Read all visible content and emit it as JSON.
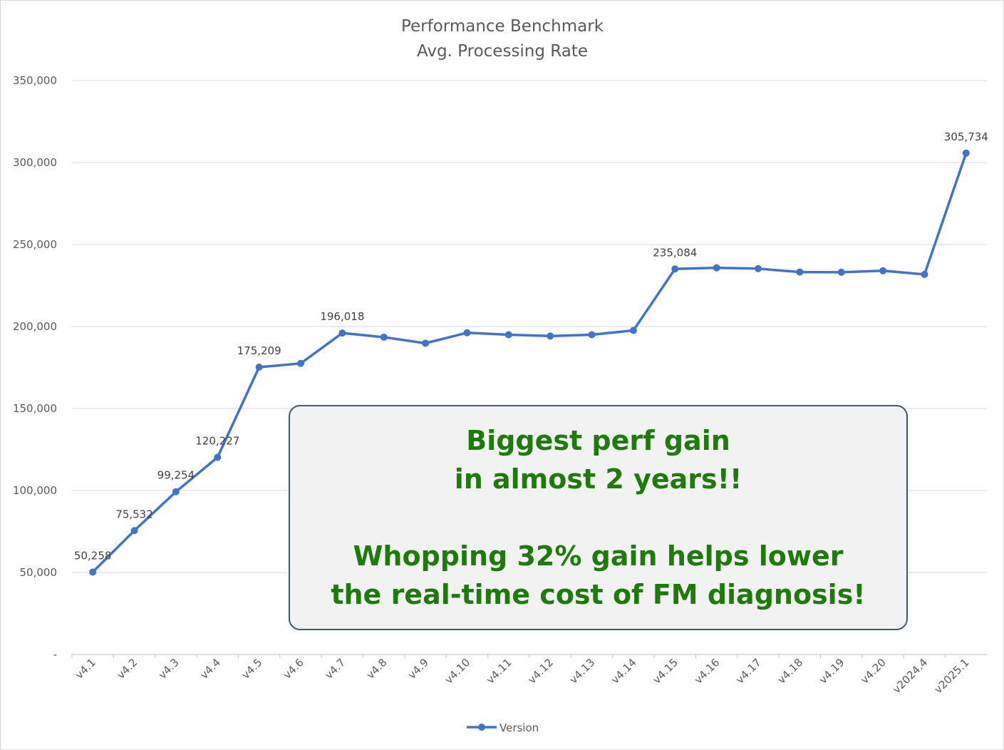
{
  "chart_data": {
    "type": "line",
    "title": "Performance Benchmark",
    "subtitle": "Avg. Processing Rate",
    "xlabel": "",
    "ylabel": "",
    "categories": [
      "v4.1",
      "v4.2",
      "v4.3",
      "v4.4",
      "v4.5",
      "v4.6",
      "v4.7",
      "v4.8",
      "v4.9",
      "v4.10",
      "v4.11",
      "v4.12",
      "v4.13",
      "v4.14",
      "v4.15",
      "v4.16",
      "v4.17",
      "v4.18",
      "v4.19",
      "v4.20",
      "v2024.4",
      "v2025.1"
    ],
    "series": [
      {
        "name": "Version",
        "color": "#4472c4",
        "values": [
          50258,
          75532,
          99254,
          120227,
          175209,
          177500,
          196018,
          193500,
          189800,
          196200,
          195000,
          194200,
          195000,
          197600,
          235084,
          235800,
          235300,
          233200,
          233100,
          234000,
          231800,
          305734
        ]
      }
    ],
    "data_labels": [
      {
        "index": 0,
        "text": "50,258"
      },
      {
        "index": 1,
        "text": "75,532"
      },
      {
        "index": 2,
        "text": "99,254"
      },
      {
        "index": 3,
        "text": "120,227"
      },
      {
        "index": 4,
        "text": "175,209"
      },
      {
        "index": 6,
        "text": "196,018"
      },
      {
        "index": 14,
        "text": "235,084"
      },
      {
        "index": 21,
        "text": "305,734"
      }
    ],
    "ylim": [
      0,
      350000
    ],
    "y_ticks": [
      0,
      50000,
      100000,
      150000,
      200000,
      250000,
      300000,
      350000
    ],
    "y_tick_labels": [
      "-",
      "50,000",
      "100,000",
      "150,000",
      "200,000",
      "250,000",
      "300,000",
      "350,000"
    ],
    "grid": true,
    "legend_position": "bottom"
  },
  "annotation": {
    "line1": "Biggest perf gain",
    "line2": "in almost 2 years!!",
    "line3": "Whopping 32% gain helps lower",
    "line4": "the real-time cost of FM diagnosis!"
  }
}
